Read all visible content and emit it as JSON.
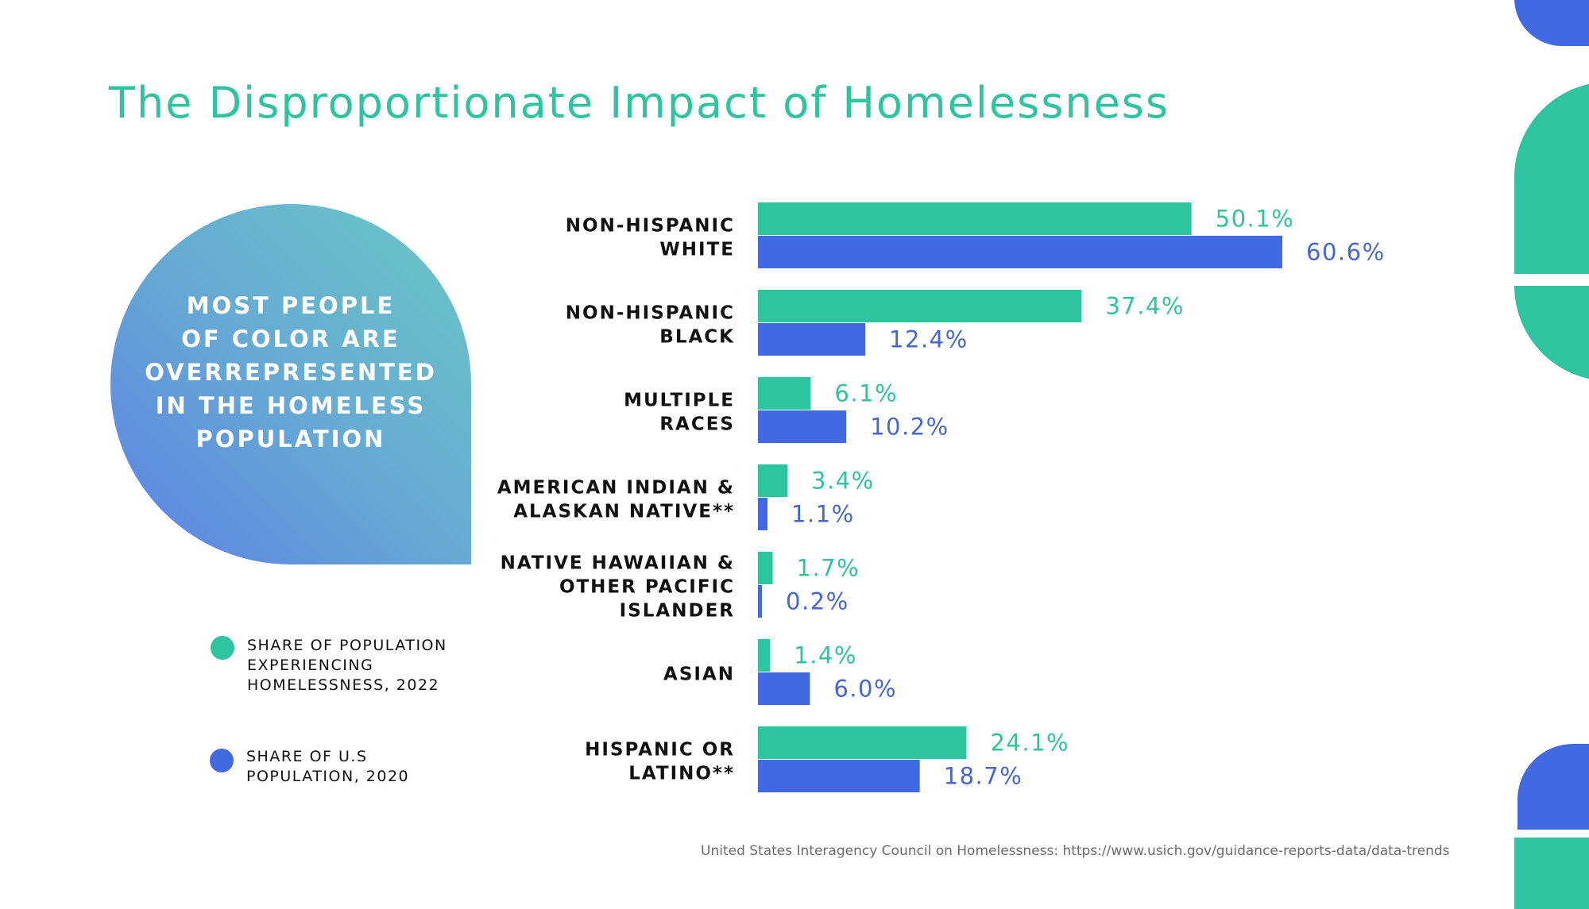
{
  "title": "The Disproportionate Impact of Homelessness",
  "callout": "MOST PEOPLE\nOF COLOR ARE\nOVERREPRESENTED\nIN THE HOMELESS\nPOPULATION",
  "legend": [
    {
      "label": "SHARE OF POPULATION\nEXPERIENCING\nHOMELESSNESS, 2022",
      "color": "#2dc4a0"
    },
    {
      "label": "SHARE OF U.S\nPOPULATION, 2020",
      "color": "#4169e1"
    }
  ],
  "source": "United States Interagency Council on Homelessness: https://www.usich.gov/guidance-reports-data/data-trends",
  "colors": {
    "teal": "#2dc4a0",
    "blue": "#4169e1"
  },
  "chart_data": {
    "type": "bar",
    "orientation": "horizontal",
    "categories": [
      "NON-HISPANIC\nWHITE",
      "NON-HISPANIC\nBLACK",
      "MULTIPLE\nRACES",
      "AMERICAN INDIAN &\nALASKAN NATIVE**",
      "NATIVE HAWAIIAN &\nOTHER PACIFIC\nISLANDER",
      "ASIAN",
      "HISPANIC OR\nLATINO**"
    ],
    "series": [
      {
        "name": "SHARE OF POPULATION EXPERIENCING HOMELESSNESS, 2022",
        "color": "#2dc4a0",
        "values": [
          50.1,
          37.4,
          6.1,
          3.4,
          1.7,
          1.4,
          24.1
        ],
        "labels": [
          "50.1%",
          "37.4%",
          "6.1%",
          "3.4%",
          "1.7%",
          "1.4%",
          "24.1%"
        ]
      },
      {
        "name": "SHARE OF U.S POPULATION, 2020",
        "color": "#4169e1",
        "values": [
          60.6,
          12.4,
          10.2,
          1.1,
          0.2,
          6.0,
          18.7
        ],
        "labels": [
          "60.6%",
          "12.4%",
          "10.2%",
          "1.1%",
          "0.2%",
          "6.0%",
          "18.7%"
        ]
      }
    ],
    "xlim": [
      0,
      60.6
    ],
    "grid": false
  }
}
